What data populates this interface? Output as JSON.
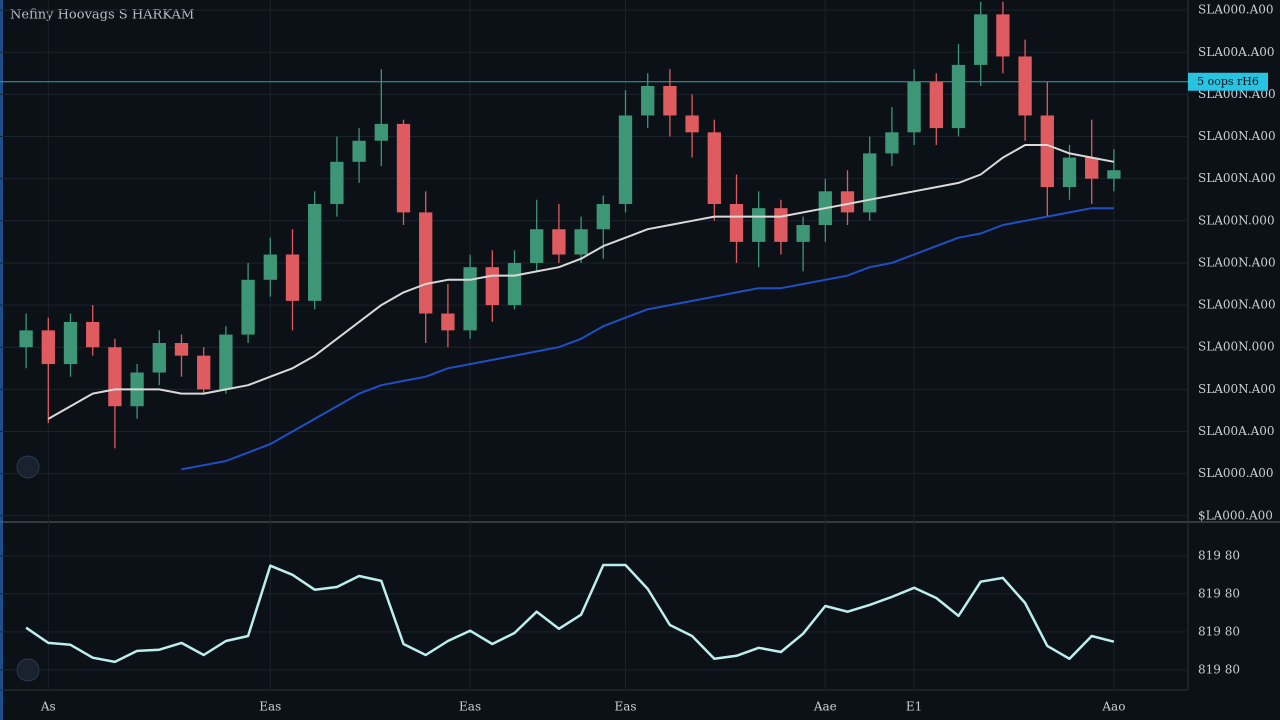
{
  "chart_data": [
    {
      "type": "candlestick",
      "title": "Nefiny Hoovags S HARKAM",
      "categories": [
        null,
        "As",
        null,
        null,
        null,
        null,
        null,
        null,
        null,
        null,
        null,
        "Eas",
        null,
        null,
        null,
        null,
        null,
        null,
        null,
        null,
        "Eas",
        null,
        null,
        null,
        null,
        null,
        null,
        "Eas",
        null,
        null,
        null,
        null,
        null,
        null,
        null,
        null,
        "Aae",
        null,
        null,
        null,
        "E1",
        null,
        null,
        null,
        null,
        null,
        null,
        null,
        null,
        "Aao"
      ],
      "open": [
        4.0,
        4.4,
        3.6,
        4.6,
        4.0,
        2.6,
        3.4,
        4.1,
        3.8,
        3.0,
        4.3,
        5.6,
        6.2,
        5.1,
        7.4,
        8.4,
        8.9,
        9.3,
        7.2,
        4.8,
        4.4,
        5.9,
        5.0,
        6.0,
        6.8,
        6.2,
        6.8,
        7.4,
        9.5,
        10.2,
        9.5,
        9.1,
        7.4,
        6.5,
        7.3,
        6.5,
        6.9,
        7.7,
        7.2,
        8.6,
        9.1,
        10.3,
        9.2,
        10.7,
        11.9,
        10.9,
        9.5,
        7.8,
        8.5,
        8.0
      ],
      "high": [
        4.8,
        4.7,
        4.8,
        5.0,
        4.2,
        3.6,
        4.4,
        4.3,
        4.0,
        4.5,
        6.0,
        6.6,
        6.8,
        7.7,
        9.0,
        9.2,
        10.6,
        9.4,
        7.7,
        5.5,
        6.2,
        6.3,
        6.3,
        7.5,
        7.4,
        7.1,
        7.6,
        10.1,
        10.5,
        10.6,
        10.0,
        9.4,
        8.1,
        7.7,
        7.5,
        7.1,
        8.0,
        8.2,
        9.0,
        9.7,
        10.6,
        10.5,
        11.2,
        12.2,
        12.2,
        11.3,
        10.3,
        8.8,
        9.4,
        8.7
      ],
      "low": [
        3.5,
        2.2,
        3.3,
        3.8,
        1.6,
        2.3,
        3.1,
        3.3,
        2.9,
        2.9,
        4.1,
        5.2,
        4.4,
        4.9,
        7.1,
        7.9,
        8.3,
        6.9,
        4.1,
        4.0,
        4.2,
        4.6,
        4.9,
        5.8,
        6.0,
        6.0,
        6.1,
        7.2,
        9.2,
        9.0,
        8.5,
        7.0,
        6.0,
        5.9,
        6.2,
        5.8,
        6.5,
        6.9,
        7.0,
        8.3,
        8.8,
        8.8,
        9.0,
        10.2,
        10.5,
        8.9,
        7.1,
        7.5,
        7.4,
        7.7
      ],
      "close": [
        4.4,
        3.6,
        4.6,
        4.0,
        2.6,
        3.4,
        4.1,
        3.8,
        3.0,
        4.3,
        5.6,
        6.2,
        5.1,
        7.4,
        8.4,
        8.9,
        9.3,
        7.2,
        4.8,
        4.4,
        5.9,
        5.0,
        6.0,
        6.8,
        6.2,
        6.8,
        7.4,
        9.5,
        10.2,
        9.5,
        9.1,
        7.4,
        6.5,
        7.3,
        6.5,
        6.9,
        7.7,
        7.2,
        8.6,
        9.1,
        10.3,
        9.2,
        10.7,
        11.9,
        10.9,
        9.5,
        7.8,
        8.5,
        8.0,
        8.2
      ],
      "up_color": "#3d9676",
      "down_color": "#de5b5f",
      "lines": [
        {
          "color": "#d9d9d9",
          "values": [
            null,
            2.3,
            2.6,
            2.9,
            3.0,
            3.0,
            3.0,
            2.9,
            2.9,
            3.0,
            3.1,
            3.3,
            3.5,
            3.8,
            4.2,
            4.6,
            5.0,
            5.3,
            5.5,
            5.6,
            5.6,
            5.7,
            5.7,
            5.8,
            5.9,
            6.1,
            6.4,
            6.6,
            6.8,
            6.9,
            7.0,
            7.1,
            7.1,
            7.1,
            7.1,
            7.2,
            7.3,
            7.4,
            7.5,
            7.6,
            7.7,
            7.8,
            7.9,
            8.1,
            8.5,
            8.8,
            8.8,
            8.6,
            8.5,
            8.4
          ]
        },
        {
          "color": "#1f4fc4",
          "values": [
            null,
            null,
            null,
            null,
            null,
            null,
            null,
            1.1,
            1.2,
            1.3,
            1.5,
            1.7,
            2.0,
            2.3,
            2.6,
            2.9,
            3.1,
            3.2,
            3.3,
            3.5,
            3.6,
            3.7,
            3.8,
            3.9,
            4.0,
            4.2,
            4.5,
            4.7,
            4.9,
            5.0,
            5.1,
            5.2,
            5.3,
            5.4,
            5.4,
            5.5,
            5.6,
            5.7,
            5.9,
            6.0,
            6.2,
            6.4,
            6.6,
            6.7,
            6.9,
            7.0,
            7.1,
            7.2,
            7.3,
            7.3
          ]
        }
      ],
      "price_line": {
        "value": 10.3,
        "label": "5 oops rH6",
        "color": "#2fa3a8"
      },
      "ylim": [
        -0.1,
        12.24
      ],
      "yticks": [
        {
          "value": 0,
          "label": "$LA000.A00"
        },
        {
          "value": 1,
          "label": "SLA000.A00"
        },
        {
          "value": 2,
          "label": "SLA00A.A00"
        },
        {
          "value": 3,
          "label": "SLA00N.A00"
        },
        {
          "value": 4,
          "label": "SLA00N.000"
        },
        {
          "value": 5,
          "label": "SLA00N.A00"
        },
        {
          "value": 6,
          "label": "SLA00N.A00"
        },
        {
          "value": 7,
          "label": "SLA00N.000"
        },
        {
          "value": 8,
          "label": "SLA00N.A00"
        },
        {
          "value": 9,
          "label": "SLA00N.A00"
        },
        {
          "value": 10,
          "label": "SLA00N.A00"
        },
        {
          "value": 11,
          "label": "SLA00A.A00"
        },
        {
          "value": 12,
          "label": "SLA000.A00"
        }
      ],
      "grid": true
    },
    {
      "type": "line",
      "values": [
        1.11,
        0.71,
        0.66,
        0.32,
        0.21,
        0.5,
        0.53,
        0.71,
        0.39,
        0.76,
        0.89,
        2.74,
        2.5,
        2.11,
        2.18,
        2.47,
        2.34,
        0.68,
        0.39,
        0.76,
        1.03,
        0.68,
        0.97,
        1.53,
        1.08,
        1.45,
        2.76,
        2.76,
        2.13,
        1.18,
        0.89,
        0.29,
        0.37,
        0.58,
        0.47,
        0.95,
        1.68,
        1.53,
        1.71,
        1.92,
        2.16,
        1.89,
        1.42,
        2.32,
        2.42,
        1.76,
        0.63,
        0.29,
        0.89,
        0.74
      ],
      "color": "#bdeeee",
      "ylim": [
        -0.53,
        3.89
      ],
      "yticks": [
        {
          "value": 0,
          "label": "819 80"
        },
        {
          "value": 1,
          "label": "819 80"
        },
        {
          "value": 2,
          "label": "819 80"
        },
        {
          "value": 3,
          "label": "819 80"
        }
      ],
      "grid": true
    }
  ]
}
